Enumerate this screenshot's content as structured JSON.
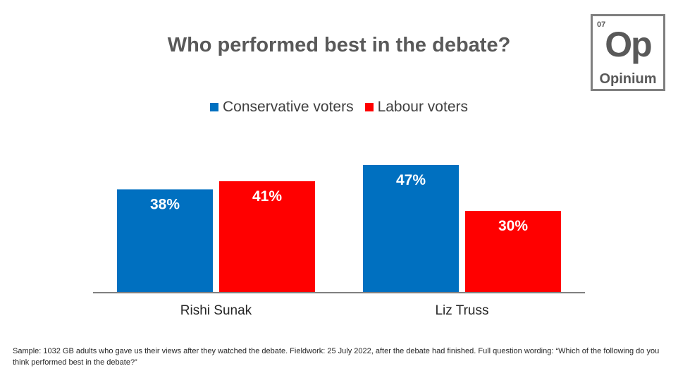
{
  "logo": {
    "number": "07",
    "symbol": "Op",
    "name": "Opinium"
  },
  "colors": {
    "conservative": "#0070c0",
    "labour": "#ff0000",
    "title": "#595959"
  },
  "chart_data": {
    "type": "bar",
    "title": "Who performed best in the debate?",
    "categories": [
      "Rishi Sunak",
      "Liz Truss"
    ],
    "series": [
      {
        "name": "Conservative voters",
        "values": [
          38,
          47
        ],
        "labels": [
          "38%",
          "47%"
        ],
        "color": "#0070c0"
      },
      {
        "name": "Labour voters",
        "values": [
          41,
          30
        ],
        "labels": [
          "41%",
          "30%"
        ],
        "color": "#ff0000"
      }
    ],
    "ylim": [
      0,
      50
    ],
    "grid": false,
    "legend": "top-center",
    "xlabel": "",
    "ylabel": ""
  },
  "footnote": "Sample: 1032 GB adults who gave us their views after they watched the debate. Fieldwork: 25 July 2022, after the debate had finished. Full question wording: “Which of the following do you think performed best in the debate?”"
}
